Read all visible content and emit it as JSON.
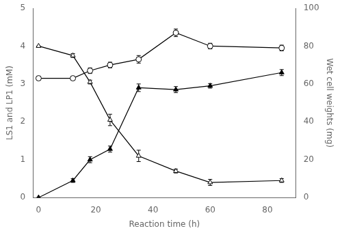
{
  "chart_data": {
    "type": "line",
    "x": [
      0,
      12,
      18,
      25,
      35,
      48,
      60,
      85
    ],
    "series": [
      {
        "color": "#000000",
        "marker": "triangle-open",
        "line_style": "solid",
        "values": [
          4.0,
          3.75,
          3.05,
          2.05,
          1.1,
          0.7,
          0.4,
          0.45
        ],
        "yerr": [
          0.0,
          0.05,
          0.05,
          0.15,
          0.15,
          0.05,
          0.08,
          0.05
        ]
      },
      {
        "color": "#000000",
        "marker": "triangle",
        "line_style": "solid",
        "values": [
          0.0,
          0.45,
          1.0,
          1.28,
          2.9,
          2.85,
          2.95,
          3.3
        ],
        "yerr": [
          0.0,
          0.05,
          0.08,
          0.08,
          0.1,
          0.08,
          0.06,
          0.08
        ]
      },
      {
        "color": "#000000",
        "marker": "circle-open",
        "line_style": "solid",
        "axis": "y2",
        "values": [
          63,
          63,
          67,
          70,
          73,
          87,
          80,
          79
        ],
        "yerr": [
          1.0,
          1.0,
          1.5,
          1.5,
          2.0,
          2.0,
          1.5,
          1.5
        ]
      }
    ],
    "xlabel": "Reaction time (h)",
    "ylabel": "LS1 and LP1 (mM)",
    "y2label": "Wet cell weights (mg)",
    "xlim": [
      -2,
      90
    ],
    "xticks": [
      0,
      20,
      40,
      60,
      80
    ],
    "ylim": [
      0,
      5
    ],
    "yticks": [
      0,
      1,
      2,
      3,
      4,
      5
    ],
    "y2lim": [
      0,
      100
    ],
    "y2ticks": [
      0,
      20,
      40,
      60,
      80,
      100
    ],
    "grid": false
  }
}
